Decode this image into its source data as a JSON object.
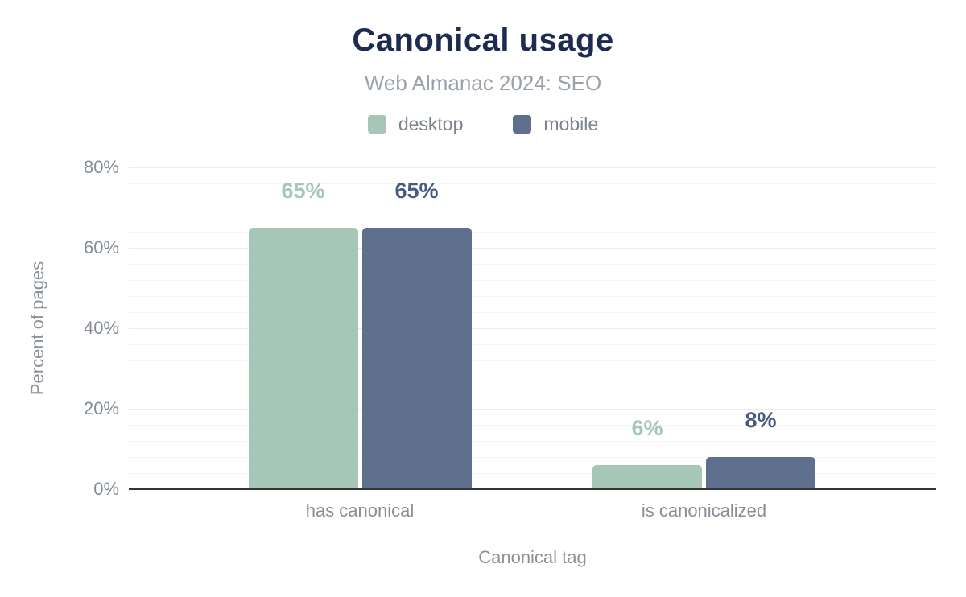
{
  "header": {
    "title": "Canonical usage",
    "subtitle": "Web Almanac 2024: SEO"
  },
  "legend": [
    {
      "label": "desktop",
      "color": "#a6c7b7"
    },
    {
      "label": "mobile",
      "color": "#5f6f8e"
    }
  ],
  "chart_data": {
    "type": "bar",
    "title": "Canonical usage",
    "subtitle": "Web Almanac 2024: SEO",
    "categories": [
      "has canonical",
      "is canonicalized"
    ],
    "series": [
      {
        "name": "desktop",
        "values": [
          65,
          6
        ],
        "labels": [
          "65%",
          "6%"
        ],
        "color": "#a6c7b7",
        "label_color": "#a4c6b6"
      },
      {
        "name": "mobile",
        "values": [
          65,
          8
        ],
        "labels": [
          "65%",
          "8%"
        ],
        "color": "#5f6f8e",
        "label_color": "#475b7f"
      }
    ],
    "xlabel": "Canonical tag",
    "ylabel": "Percent of pages",
    "ylim": [
      0,
      80
    ],
    "yticks": [
      0,
      20,
      40,
      60,
      80
    ],
    "ytick_labels": [
      "0%",
      "20%",
      "40%",
      "60%",
      "80%"
    ],
    "minor_grid_interval": 4,
    "major_grid_interval": 20,
    "grid": true,
    "legend_position": "top"
  }
}
